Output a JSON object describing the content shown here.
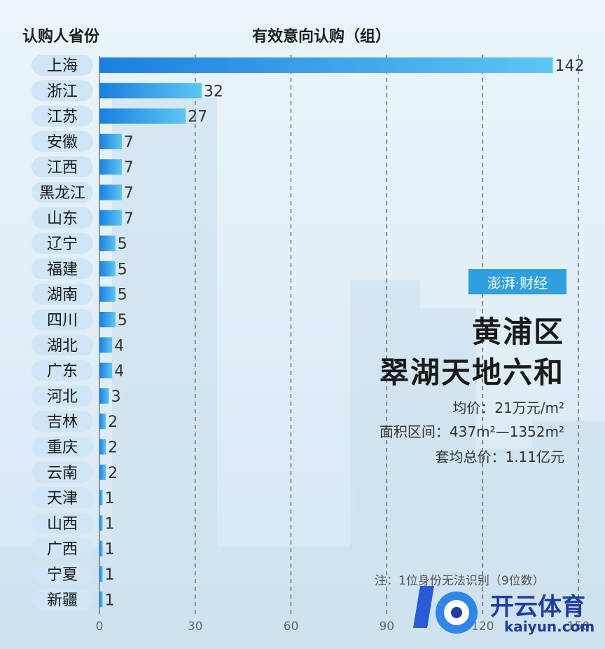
{
  "header": {
    "left": "认购人省份",
    "center": "有效意向认购（组）"
  },
  "chart_data": {
    "type": "bar",
    "orientation": "horizontal",
    "categories": [
      "上海",
      "浙江",
      "江苏",
      "安徽",
      "江西",
      "黑龙江",
      "山东",
      "辽宁",
      "福建",
      "湖南",
      "四川",
      "湖北",
      "广东",
      "河北",
      "吉林",
      "重庆",
      "云南",
      "天津",
      "山西",
      "广西",
      "宁夏",
      "新疆"
    ],
    "values": [
      142,
      32,
      27,
      7,
      7,
      7,
      7,
      5,
      5,
      5,
      5,
      4,
      4,
      3,
      2,
      2,
      2,
      1,
      1,
      1,
      1,
      1
    ],
    "xlim": [
      0,
      150
    ],
    "xticks": [
      "0",
      "30",
      "60",
      "90",
      "120",
      "150"
    ],
    "xlabel": "",
    "ylabel": "",
    "grid": "vertical dashed",
    "colors": {
      "bar_start": "#1a7fe0",
      "bar_end": "#5cc6f3",
      "pill": "#cfe6f6"
    }
  },
  "logo": {
    "text": "澎湃·财经"
  },
  "info": {
    "title_line1": "黄浦区",
    "title_line2": "翠湖天地六和",
    "avg_price": "均价：21万元/m²",
    "area_range": "面积区间：437m²—1352m²",
    "avg_total": "套均总价：1.11亿元"
  },
  "note": "注：1位身份无法识别（9位数）",
  "watermark": {
    "text": "开云体育",
    "sub": "kaiyun.com"
  }
}
